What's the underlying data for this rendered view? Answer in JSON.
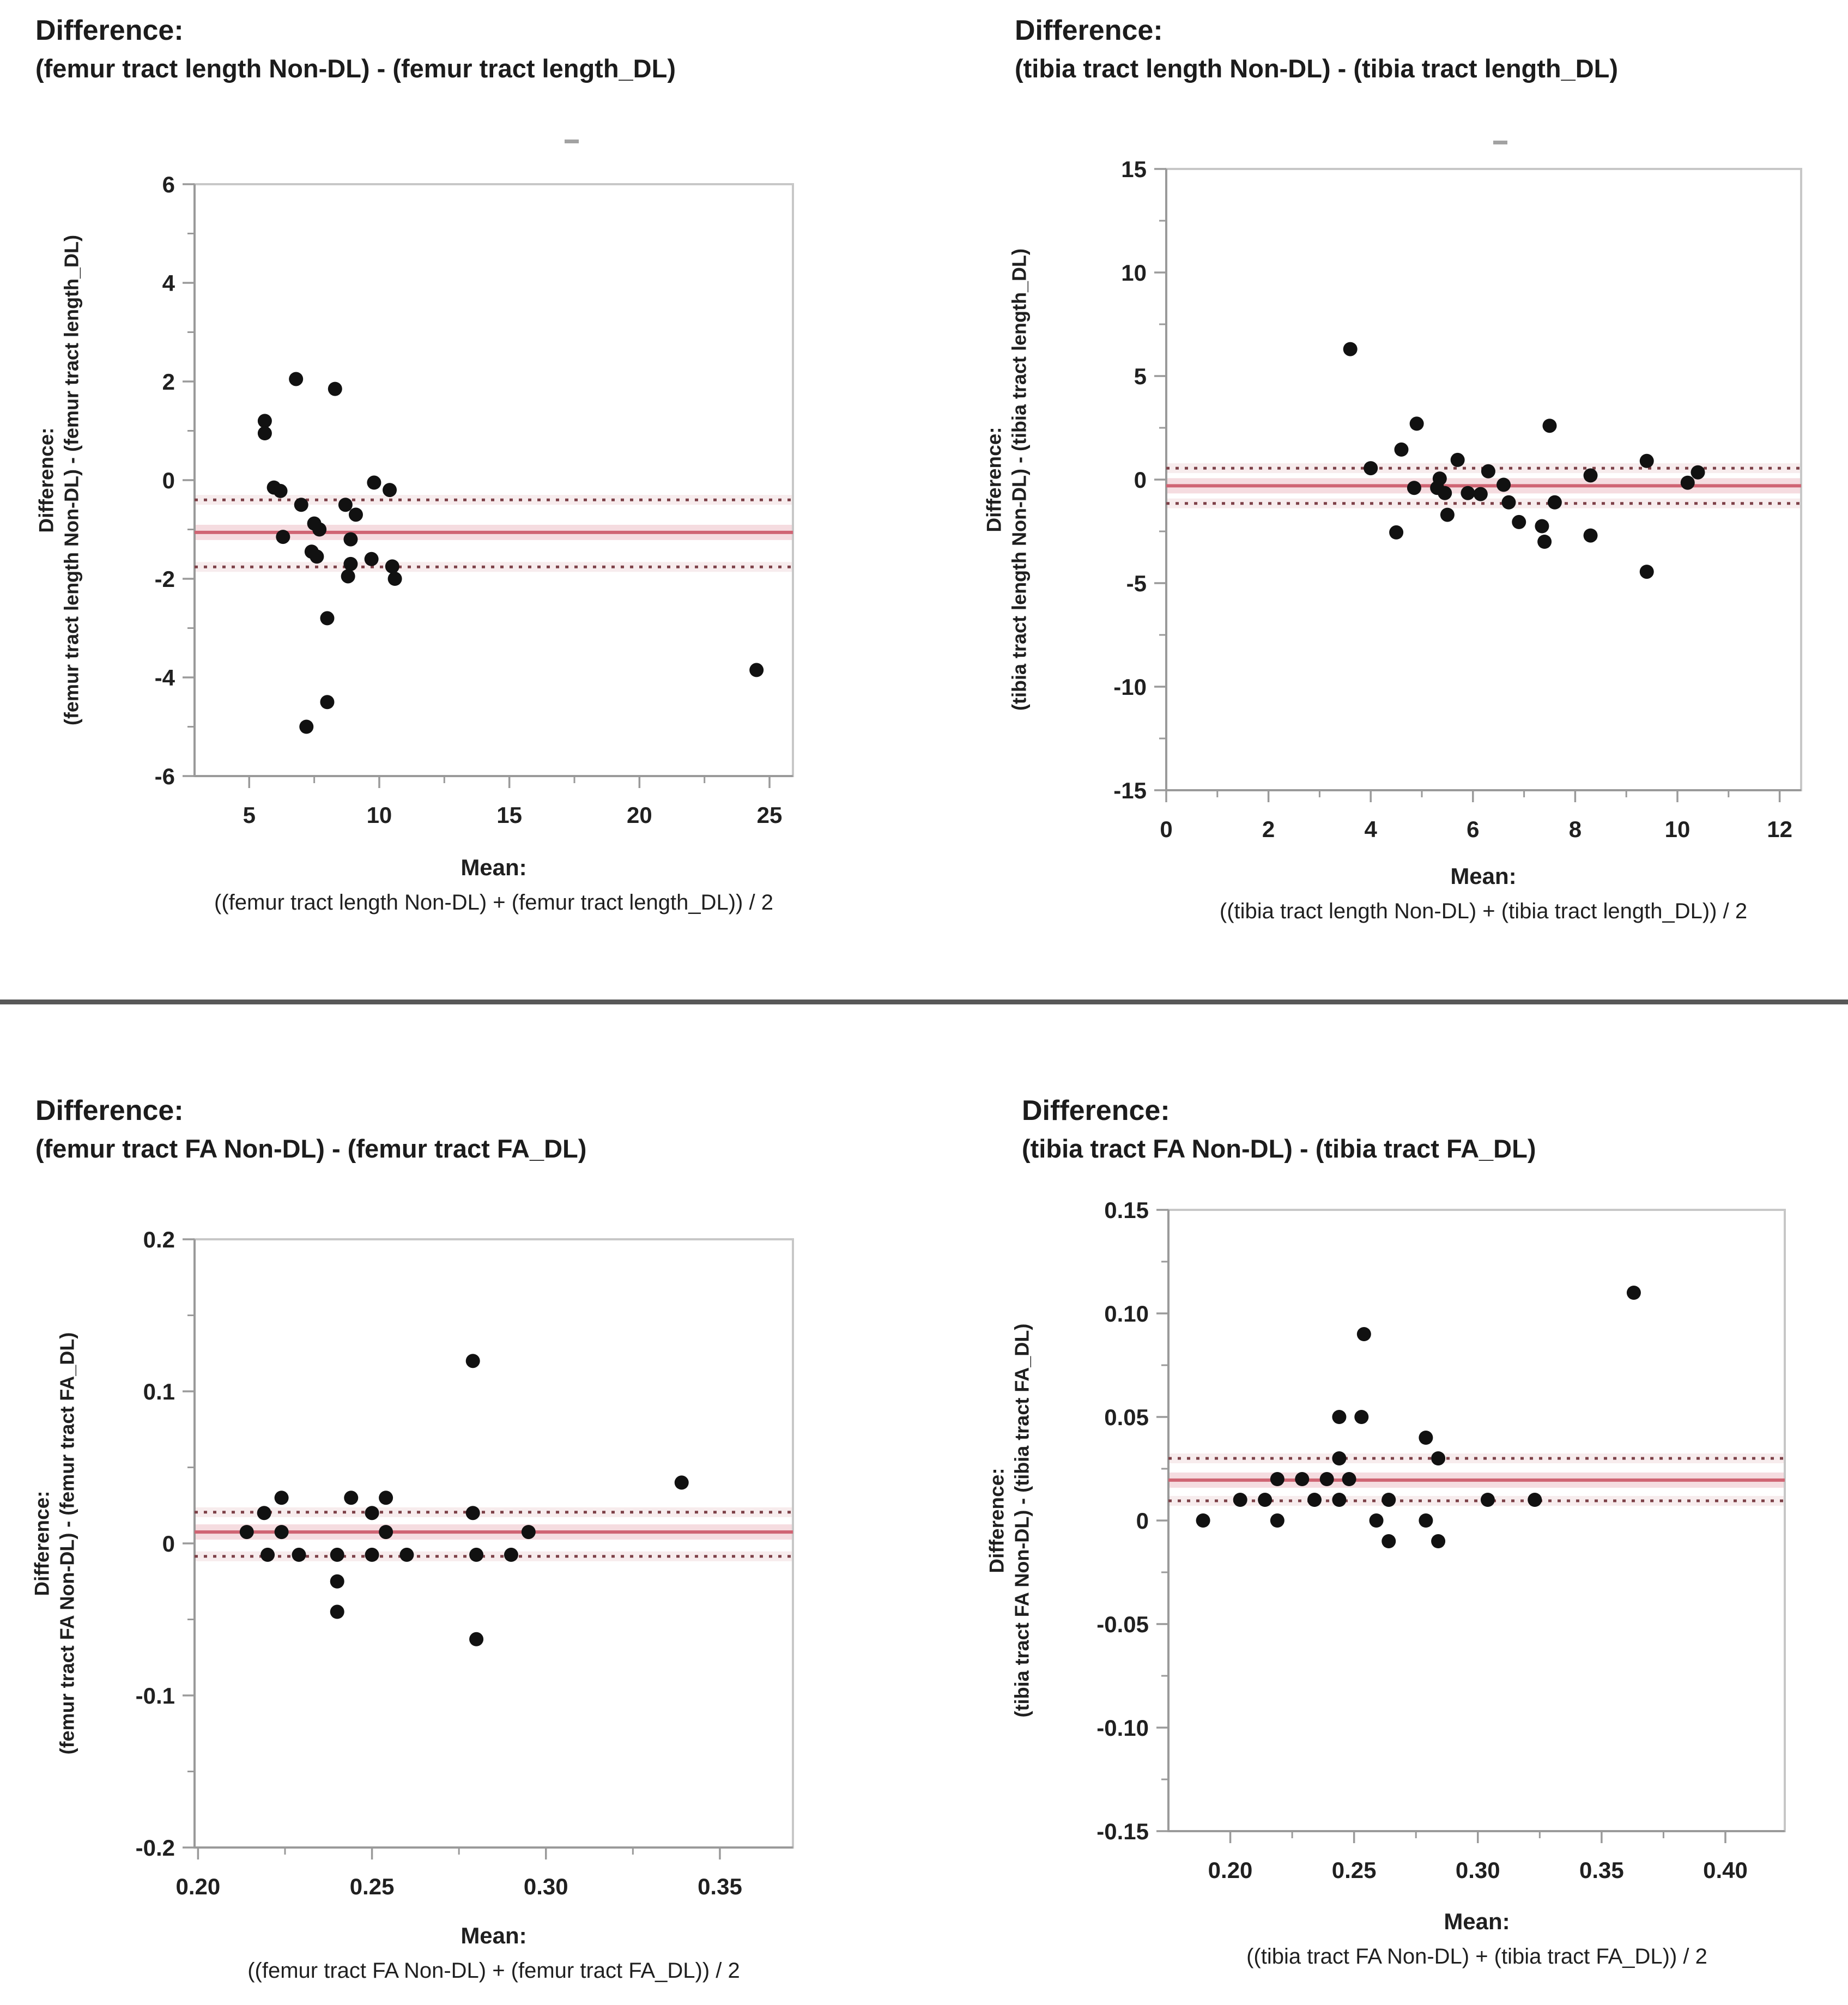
{
  "colors": {
    "dot": "#111111",
    "mean_line": "#cf6473",
    "mean_halo": "#f5dce0",
    "loa_line": "#7d4148",
    "loa_halo": "#f7eced",
    "frame": "#c7c7c7",
    "axis": "#9a9a9a",
    "tick": "#9a9a9a",
    "tick_text": "#202020",
    "separator": "#585858"
  },
  "chart_data": [
    {
      "type": "scatter",
      "title_line1": "Difference:",
      "title_line2": "(femur tract length Non-DL) - (femur tract length_DL)",
      "ylabel_line1": "Difference:",
      "ylabel_line2": "(femur tract length Non-DL) - (femur tract length_DL)",
      "xlabel_line1": "Mean:",
      "xlabel_line2": "((femur tract length Non-DL) + (femur tract length_DL)) / 2",
      "xlim": [
        2.9,
        25.9
      ],
      "ylim": [
        -6,
        6
      ],
      "xticks": {
        "values": [
          5,
          10,
          15,
          20,
          25
        ],
        "labels": [
          "5",
          "10",
          "15",
          "20",
          "25"
        ],
        "minor": [
          7.5,
          12.5,
          17.5,
          22.5
        ]
      },
      "yticks": {
        "values": [
          -6,
          -4,
          -2,
          0,
          2,
          4,
          6
        ],
        "labels": [
          "-6",
          "-4",
          "-2",
          "0",
          "2",
          "4",
          "6"
        ],
        "minor": [
          -5,
          -3,
          -1,
          1,
          3,
          5
        ]
      },
      "mean_line": -1.06,
      "upper_line": -0.4,
      "lower_line": -1.76,
      "points": [
        [
          6.8,
          2.05
        ],
        [
          8.3,
          1.85
        ],
        [
          5.6,
          1.2
        ],
        [
          5.6,
          0.95
        ],
        [
          5.95,
          -0.15
        ],
        [
          6.2,
          -0.22
        ],
        [
          9.8,
          -0.05
        ],
        [
          10.4,
          -0.2
        ],
        [
          7.0,
          -0.5
        ],
        [
          8.7,
          -0.5
        ],
        [
          9.1,
          -0.7
        ],
        [
          7.5,
          -0.88
        ],
        [
          7.7,
          -1.0
        ],
        [
          6.3,
          -1.15
        ],
        [
          8.9,
          -1.2
        ],
        [
          7.4,
          -1.45
        ],
        [
          7.6,
          -1.55
        ],
        [
          8.9,
          -1.7
        ],
        [
          9.7,
          -1.6
        ],
        [
          8.8,
          -1.95
        ],
        [
          10.5,
          -1.75
        ],
        [
          10.6,
          -2.0
        ],
        [
          8.0,
          -2.8
        ],
        [
          24.5,
          -3.85
        ],
        [
          8.0,
          -4.5
        ],
        [
          7.2,
          -5.0
        ]
      ]
    },
    {
      "type": "scatter",
      "title_line1": "Difference:",
      "title_line2": "(tibia tract length Non-DL) - (tibia tract length_DL)",
      "ylabel_line1": "Difference:",
      "ylabel_line2": "(tibia tract length Non-DL) - (tibia tract length_DL)",
      "xlabel_line1": "Mean:",
      "xlabel_line2": "((tibia tract length Non-DL) + (tibia tract length_DL)) / 2",
      "xlim": [
        0,
        12.42
      ],
      "ylim": [
        -15,
        15
      ],
      "xticks": {
        "values": [
          0,
          2,
          4,
          6,
          8,
          10,
          12
        ],
        "labels": [
          "0",
          "2",
          "4",
          "6",
          "8",
          "10",
          "12"
        ],
        "minor": [
          1,
          3,
          5,
          7,
          9,
          11
        ]
      },
      "yticks": {
        "values": [
          -15,
          -10,
          -5,
          0,
          5,
          10,
          15
        ],
        "labels": [
          "-15",
          "-10",
          "-5",
          "0",
          "5",
          "10",
          "15"
        ],
        "minor": [
          -12.5,
          -7.5,
          -2.5,
          2.5,
          7.5,
          12.5
        ]
      },
      "mean_line": -0.3,
      "upper_line": 0.55,
      "lower_line": -1.15,
      "points": [
        [
          3.6,
          6.3
        ],
        [
          4.9,
          2.7
        ],
        [
          7.5,
          2.6
        ],
        [
          4.6,
          1.45
        ],
        [
          5.7,
          0.95
        ],
        [
          9.4,
          0.9
        ],
        [
          4.0,
          0.55
        ],
        [
          6.3,
          0.4
        ],
        [
          8.3,
          0.2
        ],
        [
          10.4,
          0.35
        ],
        [
          10.2,
          -0.15
        ],
        [
          5.35,
          0.05
        ],
        [
          5.3,
          -0.4
        ],
        [
          5.45,
          -0.65
        ],
        [
          4.85,
          -0.4
        ],
        [
          6.6,
          -0.25
        ],
        [
          5.9,
          -0.65
        ],
        [
          6.15,
          -0.7
        ],
        [
          6.7,
          -1.1
        ],
        [
          7.6,
          -1.1
        ],
        [
          5.5,
          -1.7
        ],
        [
          4.5,
          -2.55
        ],
        [
          6.9,
          -2.05
        ],
        [
          7.35,
          -2.25
        ],
        [
          7.4,
          -3.0
        ],
        [
          8.3,
          -2.7
        ],
        [
          9.4,
          -4.45
        ]
      ]
    },
    {
      "type": "scatter",
      "title_line1": "Difference:",
      "title_line2": "(femur tract FA Non-DL) - (femur tract FA_DL)",
      "ylabel_line1": "Difference:",
      "ylabel_line2": "(femur tract FA Non-DL) - (femur tract FA_DL)",
      "xlabel_line1": "Mean:",
      "xlabel_line2": "((femur tract FA Non-DL) + (femur tract FA_DL)) / 2",
      "xlim": [
        0.199,
        0.371
      ],
      "ylim": [
        -0.2,
        0.2
      ],
      "xticks": {
        "values": [
          0.2,
          0.25,
          0.3,
          0.35
        ],
        "labels": [
          "0.20",
          "0.25",
          "0.30",
          "0.35"
        ],
        "minor": [
          0.225,
          0.275,
          0.325
        ]
      },
      "yticks": {
        "values": [
          -0.2,
          -0.1,
          0,
          0.1,
          0.2
        ],
        "labels": [
          "-0.2",
          "-0.1",
          "0",
          "0.1",
          "0.2"
        ],
        "minor": [
          -0.15,
          -0.05,
          0.05,
          0.15
        ]
      },
      "mean_line": 0.0075,
      "upper_line": 0.0205,
      "lower_line": -0.0085,
      "points": [
        [
          0.279,
          0.12
        ],
        [
          0.339,
          0.04
        ],
        [
          0.224,
          0.03
        ],
        [
          0.244,
          0.03
        ],
        [
          0.254,
          0.03
        ],
        [
          0.219,
          0.02
        ],
        [
          0.25,
          0.02
        ],
        [
          0.279,
          0.02
        ],
        [
          0.214,
          0.0075
        ],
        [
          0.224,
          0.0075
        ],
        [
          0.254,
          0.0075
        ],
        [
          0.295,
          0.0075
        ],
        [
          0.22,
          -0.0075
        ],
        [
          0.229,
          -0.0075
        ],
        [
          0.24,
          -0.0075
        ],
        [
          0.25,
          -0.0075
        ],
        [
          0.26,
          -0.0075
        ],
        [
          0.28,
          -0.0075
        ],
        [
          0.29,
          -0.0075
        ],
        [
          0.24,
          -0.025
        ],
        [
          0.24,
          -0.045
        ],
        [
          0.28,
          -0.063
        ]
      ]
    },
    {
      "type": "scatter",
      "title_line1": "Difference:",
      "title_line2": "(tibia tract FA Non-DL) - (tibia tract FA_DL)",
      "ylabel_line1": "Difference:",
      "ylabel_line2": "(tibia tract FA Non-DL) - (tibia tract FA_DL)",
      "xlabel_line1": "Mean:",
      "xlabel_line2": "((tibia tract FA Non-DL) + (tibia tract FA_DL)) / 2",
      "xlim": [
        0.175,
        0.424
      ],
      "ylim": [
        -0.15,
        0.15
      ],
      "xticks": {
        "values": [
          0.2,
          0.25,
          0.3,
          0.35,
          0.4
        ],
        "labels": [
          "0.20",
          "0.25",
          "0.30",
          "0.35",
          "0.40"
        ],
        "minor": [
          0.225,
          0.275,
          0.325,
          0.375
        ]
      },
      "yticks": {
        "values": [
          -0.15,
          -0.1,
          -0.05,
          0,
          0.05,
          0.1,
          0.15
        ],
        "labels": [
          "-0.15",
          "-0.10",
          "-0.05",
          "0",
          "0.05",
          "0.10",
          "0.15"
        ],
        "minor": [
          -0.125,
          -0.075,
          -0.025,
          0.025,
          0.075,
          0.125
        ]
      },
      "mean_line": 0.0195,
      "upper_line": 0.03,
      "lower_line": 0.0095,
      "points": [
        [
          0.363,
          0.11
        ],
        [
          0.254,
          0.09
        ],
        [
          0.244,
          0.05
        ],
        [
          0.253,
          0.05
        ],
        [
          0.279,
          0.04
        ],
        [
          0.244,
          0.03
        ],
        [
          0.284,
          0.03
        ],
        [
          0.219,
          0.02
        ],
        [
          0.229,
          0.02
        ],
        [
          0.239,
          0.02
        ],
        [
          0.248,
          0.02
        ],
        [
          0.204,
          0.01
        ],
        [
          0.214,
          0.01
        ],
        [
          0.234,
          0.01
        ],
        [
          0.244,
          0.01
        ],
        [
          0.264,
          0.01
        ],
        [
          0.304,
          0.01
        ],
        [
          0.323,
          0.01
        ],
        [
          0.189,
          0.0
        ],
        [
          0.219,
          0.0
        ],
        [
          0.259,
          0.0
        ],
        [
          0.279,
          0.0
        ],
        [
          0.264,
          -0.01
        ],
        [
          0.284,
          -0.01
        ]
      ]
    }
  ]
}
